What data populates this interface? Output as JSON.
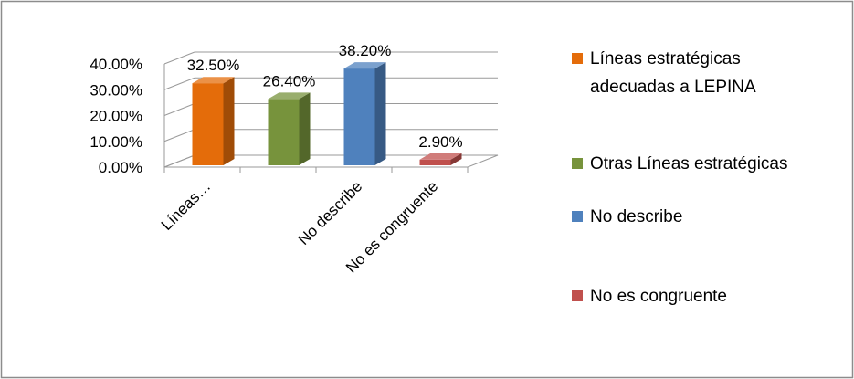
{
  "chart_data": {
    "type": "bar",
    "style": "3d-clustered-column",
    "categories": [
      "Líneas estratégicas adecuadas a LEPINA",
      "Otras Líneas estratégicas",
      "No describe",
      "No es congruente"
    ],
    "axis_tick_labels": [
      "Líneas…",
      "",
      "No describe",
      "No es congruente"
    ],
    "values": [
      32.5,
      26.4,
      38.2,
      2.9
    ],
    "data_labels": [
      "32.50%",
      "26.40%",
      "38.20%",
      "2.90%"
    ],
    "colors": [
      "#e46c0a",
      "#77933c",
      "#4f81bd",
      "#c0504d"
    ],
    "y_ticks": [
      "0.00%",
      "10.00%",
      "20.00%",
      "30.00%",
      "40.00%"
    ],
    "ylim": [
      0,
      40
    ],
    "legend_position": "right",
    "legend": [
      {
        "lines": [
          "Líneas estratégicas",
          "adecuadas a LEPINA"
        ],
        "color": "#e46c0a"
      },
      {
        "lines": [
          "Otras Líneas estratégicas"
        ],
        "color": "#77933c"
      },
      {
        "lines": [
          "No describe"
        ],
        "color": "#4f81bd"
      },
      {
        "lines": [
          "No es congruente"
        ],
        "color": "#c0504d"
      }
    ],
    "grid": true
  }
}
